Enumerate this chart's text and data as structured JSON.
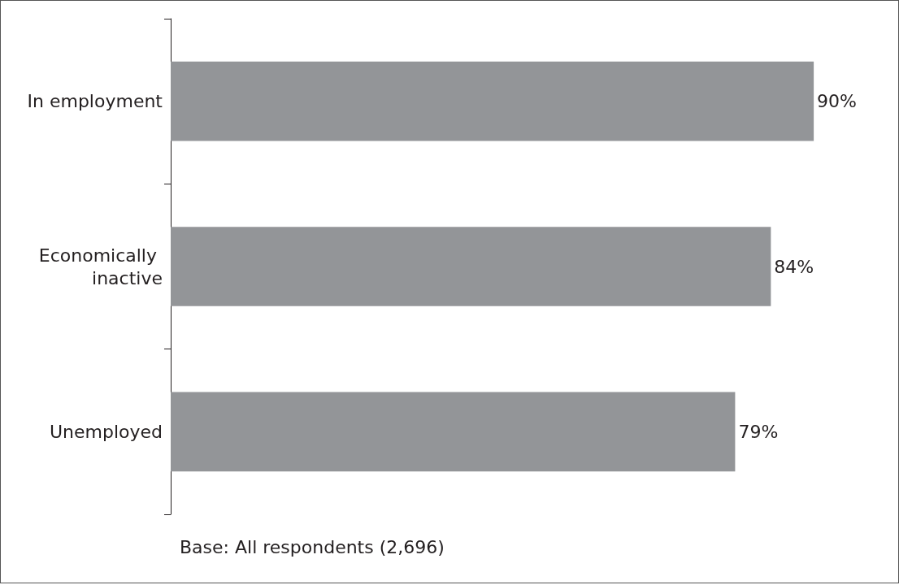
{
  "chart_data": {
    "type": "bar",
    "orientation": "horizontal",
    "categories": [
      "In employment",
      "Economically inactive",
      "Unemployed"
    ],
    "values": [
      90,
      84,
      79
    ],
    "color": "#939598",
    "value_labels": [
      "90%",
      "84%",
      "79%"
    ],
    "tick_labels": "y",
    "grid": false,
    "annotations": [
      "Base: All respondents (2,696)"
    ]
  }
}
